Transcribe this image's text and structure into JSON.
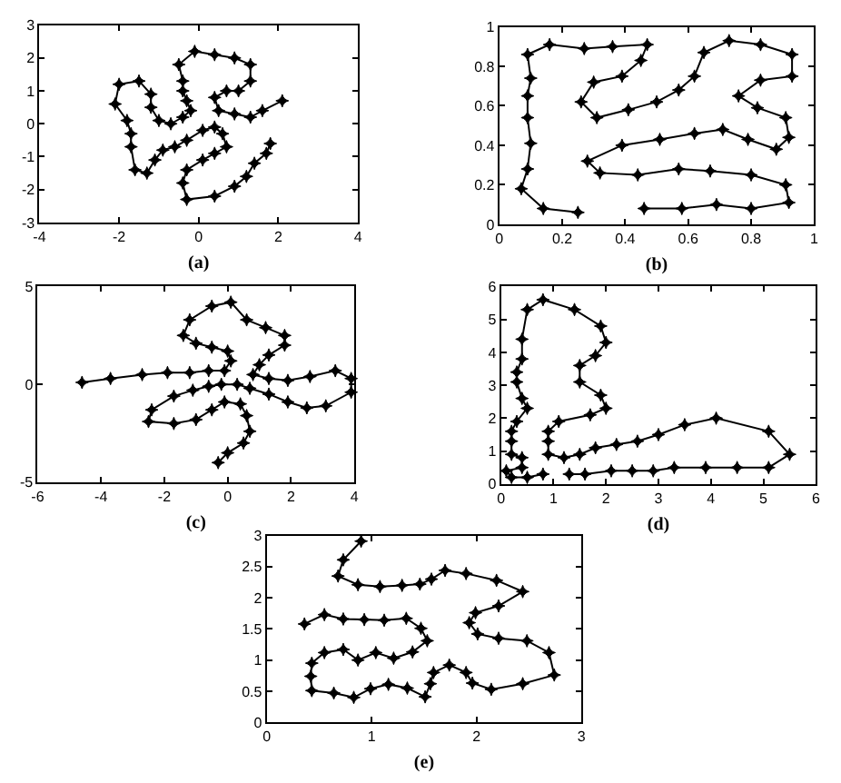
{
  "chart_data": [
    {
      "type": "line",
      "xlabel": "(a)",
      "color": "#000000",
      "marker": "star",
      "line_style": "solid",
      "xlim": [
        -4,
        4
      ],
      "ylim": [
        -3,
        3
      ],
      "xticks": [
        -4,
        -2,
        0,
        2,
        4
      ],
      "yticks": [
        -3,
        -2,
        -1,
        0,
        1,
        2,
        3
      ],
      "x": [
        2.1,
        1.6,
        1.3,
        0.9,
        0.5,
        0.4,
        0.7,
        1.0,
        1.3,
        1.3,
        0.9,
        0.4,
        -0.1,
        -0.5,
        -0.4,
        -0.4,
        -0.3,
        -0.2,
        -0.4,
        -0.7,
        -1.0,
        -1.2,
        -1.2,
        -1.5,
        -2.0,
        -2.1,
        -1.8,
        -1.7,
        -1.7,
        -1.6,
        -1.3,
        -1.1,
        -0.9,
        -0.6,
        -0.3,
        0.1,
        0.4,
        0.6,
        0.7,
        0.4,
        0.1,
        -0.3,
        -0.4,
        -0.3,
        0.4,
        0.9,
        1.2,
        1.4,
        1.7,
        1.8
      ],
      "values": [
        0.7,
        0.4,
        0.2,
        0.3,
        0.4,
        0.8,
        1.0,
        1.0,
        1.3,
        1.8,
        2.0,
        2.1,
        2.2,
        1.8,
        1.3,
        1.0,
        0.7,
        0.4,
        0.2,
        0.0,
        0.1,
        0.5,
        0.9,
        1.3,
        1.2,
        0.6,
        0.1,
        -0.3,
        -0.7,
        -1.4,
        -1.5,
        -1.1,
        -0.8,
        -0.7,
        -0.5,
        -0.2,
        -0.1,
        -0.3,
        -0.7,
        -0.9,
        -1.1,
        -1.4,
        -1.8,
        -2.3,
        -2.2,
        -1.9,
        -1.6,
        -1.2,
        -0.9,
        -0.6
      ]
    },
    {
      "type": "line",
      "xlabel": "(b)",
      "color": "#000000",
      "marker": "star",
      "line_style": "solid",
      "xlim": [
        0,
        1
      ],
      "ylim": [
        0,
        1
      ],
      "xticks": [
        0,
        0.2,
        0.4,
        0.6,
        0.8,
        1
      ],
      "yticks": [
        0,
        0.2,
        0.4,
        0.6,
        0.8,
        1
      ],
      "x": [
        0.25,
        0.14,
        0.07,
        0.09,
        0.1,
        0.09,
        0.09,
        0.1,
        0.09,
        0.16,
        0.27,
        0.36,
        0.47,
        0.45,
        0.39,
        0.3,
        0.26,
        0.31,
        0.41,
        0.5,
        0.57,
        0.62,
        0.65,
        0.73,
        0.83,
        0.93,
        0.93,
        0.83,
        0.76,
        0.82,
        0.91,
        0.92,
        0.88,
        0.79,
        0.71,
        0.62,
        0.51,
        0.39,
        0.28,
        0.32,
        0.44,
        0.57,
        0.67,
        0.8,
        0.91,
        0.92,
        0.8,
        0.69,
        0.58,
        0.46
      ],
      "values": [
        0.06,
        0.08,
        0.18,
        0.28,
        0.41,
        0.54,
        0.65,
        0.74,
        0.86,
        0.91,
        0.89,
        0.9,
        0.91,
        0.83,
        0.75,
        0.72,
        0.62,
        0.54,
        0.58,
        0.62,
        0.68,
        0.75,
        0.87,
        0.93,
        0.91,
        0.86,
        0.75,
        0.73,
        0.65,
        0.59,
        0.54,
        0.44,
        0.38,
        0.43,
        0.48,
        0.46,
        0.43,
        0.4,
        0.32,
        0.26,
        0.25,
        0.28,
        0.27,
        0.25,
        0.2,
        0.11,
        0.08,
        0.1,
        0.08,
        0.08
      ]
    },
    {
      "type": "line",
      "xlabel": "(c)",
      "color": "#000000",
      "marker": "star",
      "line_style": "solid",
      "xlim": [
        -6,
        4
      ],
      "ylim": [
        -5,
        5
      ],
      "xticks": [
        -6,
        -4,
        -2,
        0,
        2,
        4
      ],
      "yticks": [
        -5,
        0,
        5
      ],
      "x": [
        -4.6,
        -3.7,
        -2.7,
        -1.9,
        -1.2,
        -0.6,
        -0.1,
        0.1,
        0.0,
        -0.5,
        -1.0,
        -1.4,
        -1.2,
        -0.5,
        0.1,
        0.6,
        1.2,
        1.8,
        1.8,
        1.3,
        1.0,
        0.8,
        1.3,
        1.9,
        2.6,
        3.4,
        3.9,
        3.9,
        3.1,
        2.5,
        1.9,
        1.3,
        0.7,
        0.3,
        -0.2,
        -0.6,
        -1.1,
        -1.7,
        -2.4,
        -2.5,
        -1.7,
        -1.0,
        -0.5,
        -0.1,
        0.4,
        0.6,
        0.7,
        0.5,
        0.0,
        -0.3
      ],
      "values": [
        0.1,
        0.3,
        0.5,
        0.6,
        0.6,
        0.7,
        0.7,
        1.2,
        1.7,
        1.9,
        2.1,
        2.5,
        3.3,
        4.0,
        4.2,
        3.3,
        2.9,
        2.5,
        2.0,
        1.5,
        1.0,
        0.5,
        0.3,
        0.2,
        0.4,
        0.7,
        0.3,
        -0.4,
        -1.1,
        -1.2,
        -0.9,
        -0.5,
        -0.2,
        0.0,
        0.0,
        -0.1,
        -0.3,
        -0.6,
        -1.3,
        -1.9,
        -2.0,
        -1.8,
        -1.3,
        -0.9,
        -1.0,
        -1.6,
        -2.4,
        -3.0,
        -3.5,
        -4.0
      ]
    },
    {
      "type": "line",
      "xlabel": "(d)",
      "color": "#000000",
      "marker": "star",
      "line_style": "solid",
      "xlim": [
        0,
        6
      ],
      "ylim": [
        0,
        6
      ],
      "xticks": [
        0,
        1,
        2,
        3,
        4,
        5,
        6
      ],
      "yticks": [
        0,
        1,
        2,
        3,
        4,
        5,
        6
      ],
      "x": [
        0.8,
        0.5,
        0.2,
        0.1,
        0.4,
        0.4,
        0.2,
        0.2,
        0.2,
        0.3,
        0.5,
        0.4,
        0.3,
        0.3,
        0.4,
        0.4,
        0.5,
        0.8,
        1.4,
        1.9,
        2.0,
        1.8,
        1.5,
        1.5,
        1.9,
        2.0,
        1.7,
        1.1,
        0.9,
        0.9,
        0.9,
        1.2,
        1.5,
        1.8,
        2.2,
        2.6,
        3.0,
        3.5,
        4.1,
        5.1,
        5.5,
        5.1,
        4.5,
        3.9,
        3.3,
        2.9,
        2.5,
        2.1,
        1.6,
        1.3
      ],
      "values": [
        0.3,
        0.2,
        0.2,
        0.4,
        0.5,
        0.8,
        0.9,
        1.3,
        1.6,
        1.9,
        2.3,
        2.6,
        3.1,
        3.4,
        3.8,
        4.4,
        5.3,
        5.6,
        5.3,
        4.8,
        4.3,
        3.9,
        3.6,
        3.1,
        2.7,
        2.3,
        2.1,
        1.9,
        1.6,
        1.3,
        0.9,
        0.8,
        0.9,
        1.1,
        1.2,
        1.3,
        1.5,
        1.8,
        2.0,
        1.6,
        0.9,
        0.5,
        0.5,
        0.5,
        0.5,
        0.4,
        0.4,
        0.4,
        0.3,
        0.3
      ]
    },
    {
      "type": "line",
      "xlabel": "(e)",
      "color": "#000000",
      "marker": "star",
      "line_style": "solid",
      "xlim": [
        0,
        3
      ],
      "ylim": [
        0,
        3
      ],
      "xticks": [
        0,
        1,
        2,
        3
      ],
      "yticks": [
        0,
        0.5,
        1,
        1.5,
        2,
        2.5,
        3
      ],
      "x": [
        0.9,
        0.73,
        0.68,
        0.87,
        1.08,
        1.29,
        1.46,
        1.57,
        1.7,
        1.9,
        2.19,
        2.44,
        2.21,
        1.99,
        1.93,
        2.01,
        2.21,
        2.48,
        2.69,
        2.74,
        2.44,
        2.14,
        1.96,
        1.9,
        1.74,
        1.59,
        1.56,
        1.51,
        1.34,
        1.16,
        0.99,
        0.83,
        0.64,
        0.43,
        0.42,
        0.43,
        0.55,
        0.73,
        0.87,
        1.04,
        1.21,
        1.39,
        1.53,
        1.47,
        1.33,
        1.12,
        0.93,
        0.73,
        0.55,
        0.36
      ],
      "values": [
        2.91,
        2.61,
        2.35,
        2.21,
        2.18,
        2.2,
        2.22,
        2.3,
        2.44,
        2.39,
        2.28,
        2.1,
        1.87,
        1.76,
        1.6,
        1.42,
        1.35,
        1.31,
        1.12,
        0.76,
        0.62,
        0.53,
        0.63,
        0.8,
        0.92,
        0.8,
        0.62,
        0.41,
        0.55,
        0.61,
        0.54,
        0.4,
        0.47,
        0.51,
        0.74,
        0.95,
        1.12,
        1.17,
        1.0,
        1.12,
        1.03,
        1.13,
        1.31,
        1.51,
        1.67,
        1.64,
        1.65,
        1.66,
        1.73,
        1.58
      ]
    }
  ]
}
